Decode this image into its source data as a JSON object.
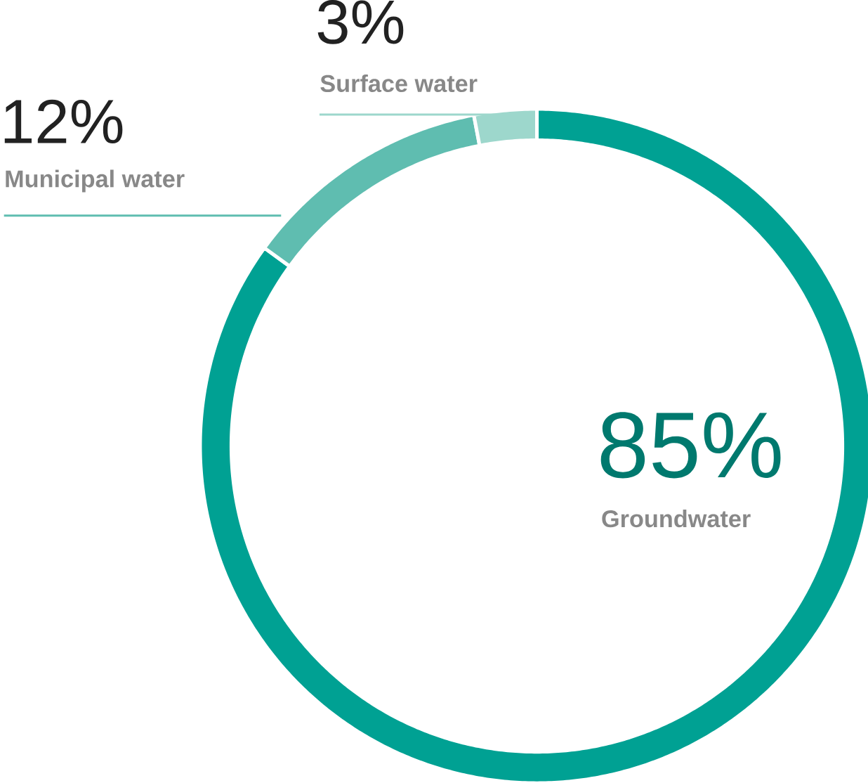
{
  "chart_data": {
    "type": "donut",
    "categories": [
      "Groundwater",
      "Municipal water",
      "Surface water"
    ],
    "values": [
      85,
      12,
      3
    ],
    "colors": [
      "#00a193",
      "#5fbdb0",
      "#9dd7cc"
    ],
    "value_labels": [
      "85%",
      "12%",
      "3%"
    ]
  }
}
